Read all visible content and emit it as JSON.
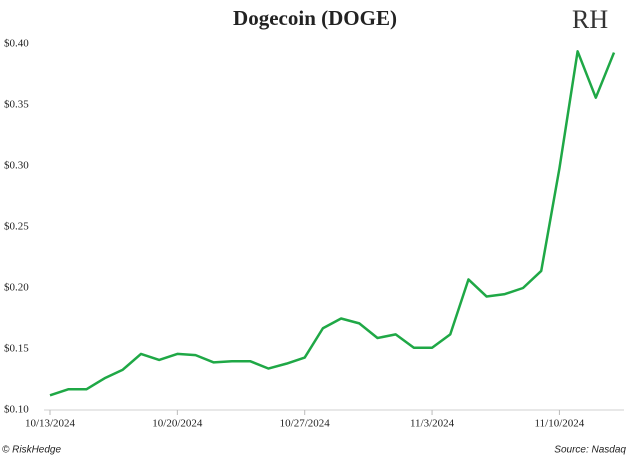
{
  "chart_data": {
    "type": "line",
    "title": "Dogecoin (DOGE)",
    "logo": "RH",
    "credit": "© RiskHedge",
    "source": "Source: Nasdaq",
    "x": [
      "10/13/2024",
      "10/14/2024",
      "10/15/2024",
      "10/16/2024",
      "10/17/2024",
      "10/18/2024",
      "10/19/2024",
      "10/20/2024",
      "10/21/2024",
      "10/22/2024",
      "10/23/2024",
      "10/24/2024",
      "10/25/2024",
      "10/26/2024",
      "10/27/2024",
      "10/28/2024",
      "10/29/2024",
      "10/30/2024",
      "10/31/2024",
      "11/1/2024",
      "11/2/2024",
      "11/3/2024",
      "11/4/2024",
      "11/5/2024",
      "11/6/2024",
      "11/7/2024",
      "11/8/2024",
      "11/9/2024",
      "11/10/2024",
      "11/11/2024",
      "11/12/2024",
      "11/13/2024"
    ],
    "series": [
      {
        "name": "Dogecoin (DOGE)",
        "color": "#1fa846",
        "values": [
          0.112,
          0.117,
          0.117,
          0.126,
          0.133,
          0.146,
          0.141,
          0.146,
          0.145,
          0.139,
          0.14,
          0.14,
          0.134,
          0.138,
          0.143,
          0.167,
          0.175,
          0.171,
          0.159,
          0.162,
          0.151,
          0.151,
          0.162,
          0.207,
          0.193,
          0.195,
          0.2,
          0.214,
          0.298,
          0.394,
          0.356,
          0.393
        ]
      }
    ],
    "xlim": [
      "10/13/2024",
      "11/13/2024"
    ],
    "xticks": [
      "10/13/2024",
      "10/20/2024",
      "10/27/2024",
      "11/3/2024",
      "11/10/2024"
    ],
    "ylim": [
      0.1,
      0.4
    ],
    "yticks": [
      {
        "value": 0.1,
        "label": "$0.10"
      },
      {
        "value": 0.15,
        "label": "$0.15"
      },
      {
        "value": 0.2,
        "label": "$0.20"
      },
      {
        "value": 0.25,
        "label": "$0.25"
      },
      {
        "value": 0.3,
        "label": "$0.30"
      },
      {
        "value": 0.35,
        "label": "$0.35"
      },
      {
        "value": 0.4,
        "label": "$0.40"
      }
    ],
    "grid": false
  }
}
